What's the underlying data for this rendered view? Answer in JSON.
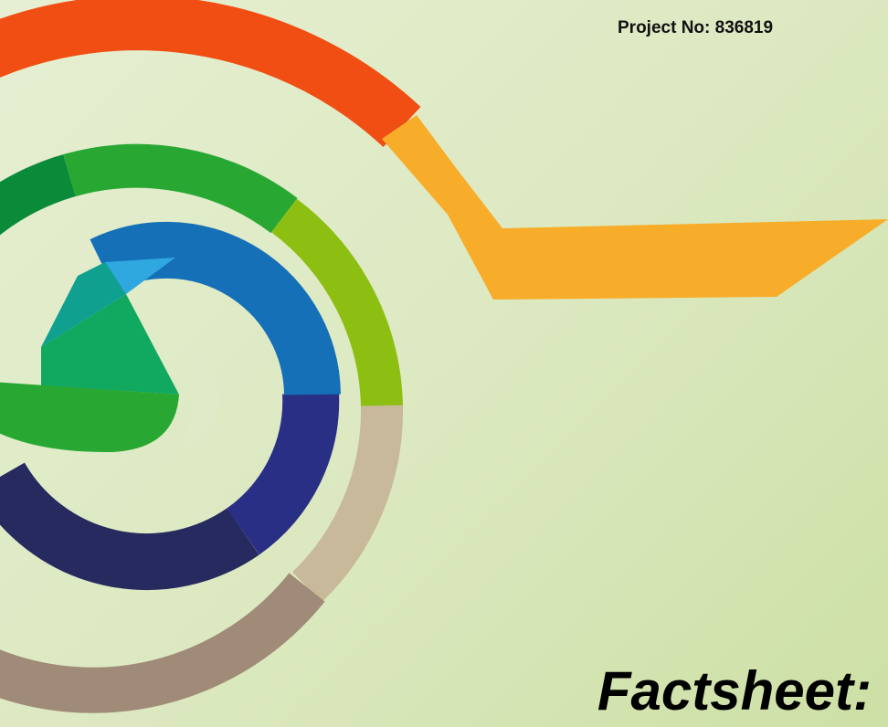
{
  "header": {
    "project": "Project No: 836819"
  },
  "title": "Factsheet:"
}
